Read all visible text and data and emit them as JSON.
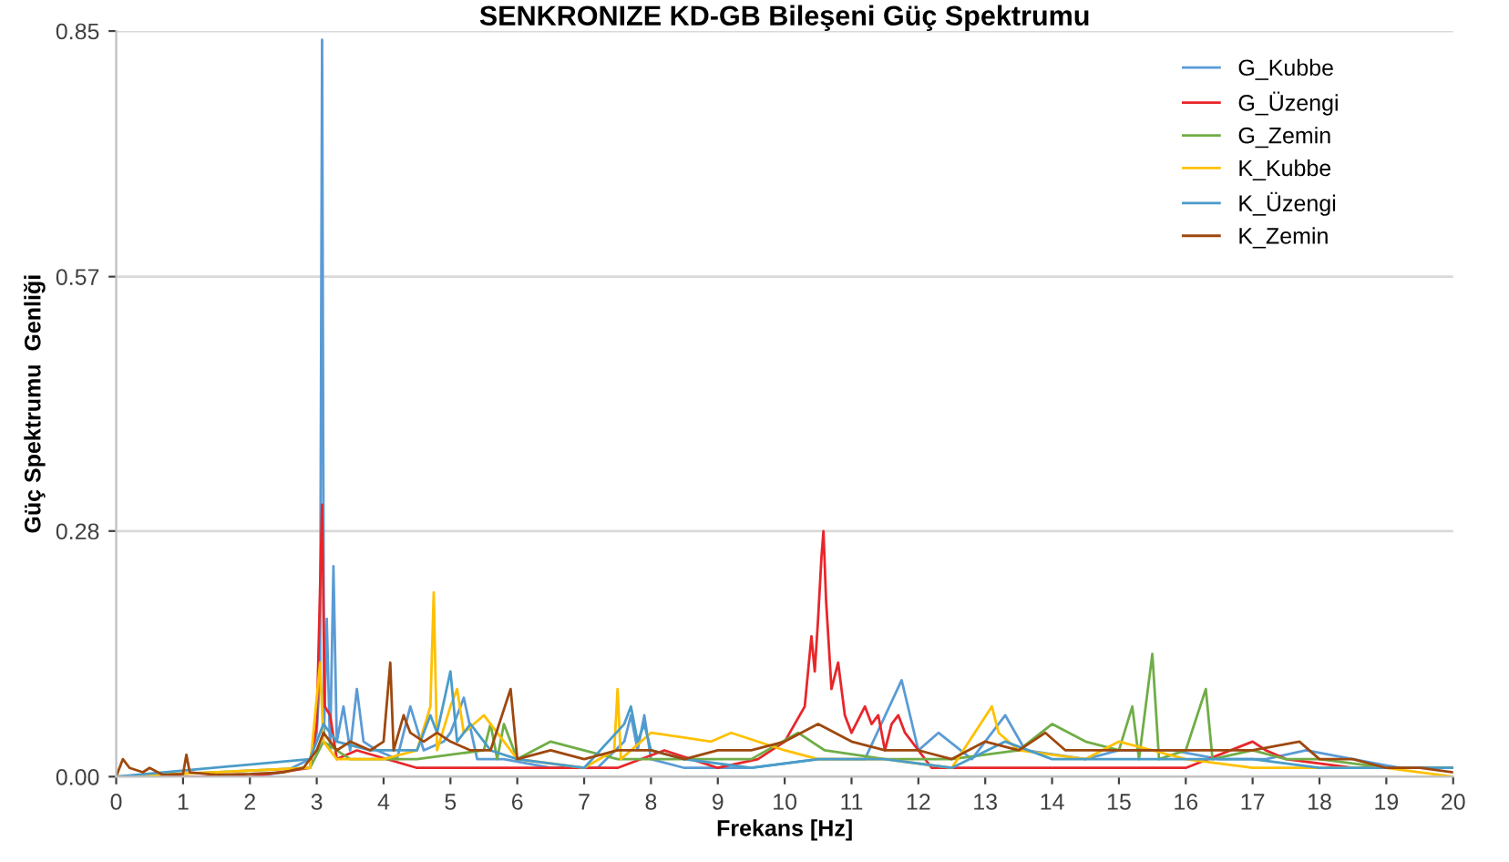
{
  "chart_data": {
    "type": "line",
    "title": "SENKRONIZE KD-GB Bileşeni Güç Spektrumu",
    "xlabel": "Frekans [Hz]",
    "ylabel": "Güç Spektrumu  Genliği",
    "xlim": [
      0,
      20
    ],
    "xticks": [
      0,
      1,
      2,
      3,
      4,
      5,
      6,
      7,
      8,
      9,
      10,
      11,
      12,
      13,
      14,
      15,
      16,
      17,
      18,
      19,
      20
    ],
    "ylim": [
      0,
      0.85
    ],
    "yticks": [
      {
        "value": 0,
        "label": "0.00"
      },
      0.28,
      0.57,
      0.85
    ],
    "grid": "y",
    "legend": "top right",
    "marker": "none",
    "line_style": "solid",
    "series": [
      {
        "name": "G_Kubbe",
        "color": "#5b9bd5",
        "x": [
          0,
          0.5,
          1,
          1.5,
          2,
          2.5,
          2.9,
          3.0,
          3.05,
          3.08,
          3.11,
          3.15,
          3.2,
          3.25,
          3.3,
          3.4,
          3.5,
          3.6,
          3.7,
          3.9,
          4.2,
          4.4,
          4.6,
          4.9,
          5.0,
          5.2,
          5.4,
          5.8,
          6.5,
          7.2,
          7.6,
          7.7,
          7.8,
          7.9,
          8.0,
          8.5,
          9.5,
          10.5,
          11.2,
          11.75,
          12.0,
          12.3,
          12.8,
          13.3,
          13.6,
          14.5,
          15.0,
          15.8,
          16.5,
          17.2,
          17.8,
          18.5,
          19.2,
          20
        ],
        "values": [
          0,
          0,
          0,
          0,
          0,
          0.005,
          0.02,
          0.05,
          0.12,
          0.84,
          0.05,
          0.18,
          0.03,
          0.24,
          0.04,
          0.08,
          0.03,
          0.1,
          0.04,
          0.03,
          0.02,
          0.08,
          0.03,
          0.04,
          0.05,
          0.09,
          0.02,
          0.02,
          0.01,
          0.01,
          0.04,
          0.07,
          0.03,
          0.07,
          0.02,
          0.01,
          0.01,
          0.02,
          0.02,
          0.11,
          0.03,
          0.05,
          0.02,
          0.07,
          0.03,
          0.02,
          0.03,
          0.03,
          0.02,
          0.02,
          0.03,
          0.02,
          0.01,
          0.01
        ]
      },
      {
        "name": "G_Üzengi",
        "color": "#e8262a",
        "x": [
          0,
          2,
          2.9,
          3.0,
          3.08,
          3.12,
          3.2,
          3.3,
          3.6,
          4.5,
          5.5,
          6.5,
          7.5,
          8.2,
          9.0,
          9.6,
          10.0,
          10.3,
          10.4,
          10.45,
          10.5,
          10.55,
          10.58,
          10.62,
          10.7,
          10.8,
          10.9,
          11.0,
          11.2,
          11.3,
          11.4,
          11.5,
          11.6,
          11.7,
          11.8,
          12.2,
          13.0,
          14.0,
          15.0,
          16.0,
          17.0,
          17.2,
          17.5,
          18.5,
          20
        ],
        "values": [
          0,
          0,
          0.01,
          0.06,
          0.31,
          0.08,
          0.07,
          0.02,
          0.03,
          0.01,
          0.01,
          0.01,
          0.01,
          0.03,
          0.01,
          0.02,
          0.04,
          0.08,
          0.16,
          0.12,
          0.18,
          0.25,
          0.28,
          0.2,
          0.1,
          0.13,
          0.07,
          0.05,
          0.08,
          0.06,
          0.07,
          0.03,
          0.06,
          0.07,
          0.05,
          0.01,
          0.01,
          0.01,
          0.01,
          0.01,
          0.04,
          0.03,
          0.02,
          0.01,
          0.01
        ]
      },
      {
        "name": "G_Zemin",
        "color": "#70ad47",
        "x": [
          0,
          2.9,
          3.1,
          3.5,
          4.5,
          5.5,
          5.6,
          5.7,
          5.8,
          6.0,
          6.5,
          7.5,
          8.5,
          9.5,
          10.2,
          10.6,
          11.5,
          12.5,
          13.5,
          14.0,
          14.5,
          15.0,
          15.2,
          15.3,
          15.5,
          15.6,
          16.0,
          16.3,
          16.4,
          17.0,
          17.5,
          18.0,
          19.0,
          20
        ],
        "values": [
          0,
          0.01,
          0.04,
          0.02,
          0.02,
          0.03,
          0.06,
          0.02,
          0.06,
          0.02,
          0.04,
          0.02,
          0.02,
          0.02,
          0.05,
          0.03,
          0.02,
          0.02,
          0.03,
          0.06,
          0.04,
          0.03,
          0.08,
          0.02,
          0.14,
          0.02,
          0.03,
          0.1,
          0.02,
          0.03,
          0.02,
          0.02,
          0.01,
          0.01
        ]
      },
      {
        "name": "K_Kubbe",
        "color": "#ffc000",
        "x": [
          0,
          2.9,
          3.05,
          3.1,
          3.3,
          4.0,
          4.5,
          4.7,
          4.75,
          4.8,
          5.0,
          5.1,
          5.2,
          5.5,
          6.0,
          7.0,
          7.45,
          7.5,
          7.55,
          8.0,
          8.9,
          9.2,
          10.0,
          10.5,
          11.5,
          12.5,
          13.1,
          13.2,
          13.5,
          14.5,
          15.0,
          16.0,
          17.0,
          18.0,
          19.0,
          20
        ],
        "values": [
          0,
          0.01,
          0.13,
          0.04,
          0.02,
          0.02,
          0.03,
          0.08,
          0.21,
          0.03,
          0.08,
          0.1,
          0.05,
          0.07,
          0.02,
          0.01,
          0.03,
          0.1,
          0.02,
          0.05,
          0.04,
          0.05,
          0.03,
          0.02,
          0.02,
          0.01,
          0.08,
          0.05,
          0.03,
          0.02,
          0.04,
          0.02,
          0.01,
          0.01,
          0.01,
          0
        ]
      },
      {
        "name": "K_Üzengi",
        "color": "#4a9cc9",
        "x": [
          0,
          2.9,
          3.1,
          3.3,
          3.8,
          4.5,
          4.7,
          4.8,
          5.0,
          5.1,
          5.3,
          5.6,
          6.0,
          7.0,
          7.6,
          7.7,
          7.8,
          7.9,
          8.0,
          8.5,
          9.5,
          10.5,
          11.5,
          12.5,
          13.3,
          14.0,
          15.0,
          16.0,
          17.0,
          18.0,
          19.0,
          20
        ],
        "values": [
          0,
          0.02,
          0.06,
          0.04,
          0.03,
          0.03,
          0.07,
          0.05,
          0.12,
          0.04,
          0.06,
          0.03,
          0.02,
          0.01,
          0.06,
          0.08,
          0.04,
          0.06,
          0.03,
          0.02,
          0.01,
          0.02,
          0.02,
          0.01,
          0.04,
          0.02,
          0.02,
          0.02,
          0.02,
          0.01,
          0.01,
          0.01
        ]
      },
      {
        "name": "K_Zemin",
        "color": "#9e480e",
        "x": [
          0,
          0.1,
          0.2,
          0.4,
          0.5,
          0.7,
          1.0,
          1.05,
          1.1,
          1.5,
          2.0,
          2.5,
          2.8,
          3.0,
          3.1,
          3.3,
          3.5,
          3.8,
          4.0,
          4.1,
          4.15,
          4.3,
          4.4,
          4.6,
          4.8,
          5.0,
          5.3,
          5.6,
          5.9,
          6.0,
          6.5,
          7.0,
          7.5,
          8.0,
          8.5,
          9.0,
          9.5,
          10.0,
          10.5,
          11.0,
          11.5,
          12.0,
          12.5,
          13.0,
          13.5,
          13.9,
          14.2,
          14.8,
          15.3,
          16.0,
          16.6,
          17.0,
          17.7,
          18.0,
          18.5,
          19.0,
          19.5,
          20
        ],
        "values": [
          0,
          0.02,
          0.01,
          0.005,
          0.01,
          0.002,
          0.003,
          0.025,
          0.005,
          0.002,
          0.003,
          0.005,
          0.01,
          0.03,
          0.05,
          0.03,
          0.04,
          0.03,
          0.04,
          0.13,
          0.03,
          0.07,
          0.05,
          0.04,
          0.05,
          0.04,
          0.03,
          0.03,
          0.1,
          0.02,
          0.03,
          0.02,
          0.03,
          0.03,
          0.02,
          0.03,
          0.03,
          0.04,
          0.06,
          0.04,
          0.03,
          0.03,
          0.02,
          0.04,
          0.03,
          0.05,
          0.03,
          0.03,
          0.03,
          0.03,
          0.03,
          0.03,
          0.04,
          0.02,
          0.02,
          0.01,
          0.01,
          0.005
        ]
      }
    ]
  }
}
